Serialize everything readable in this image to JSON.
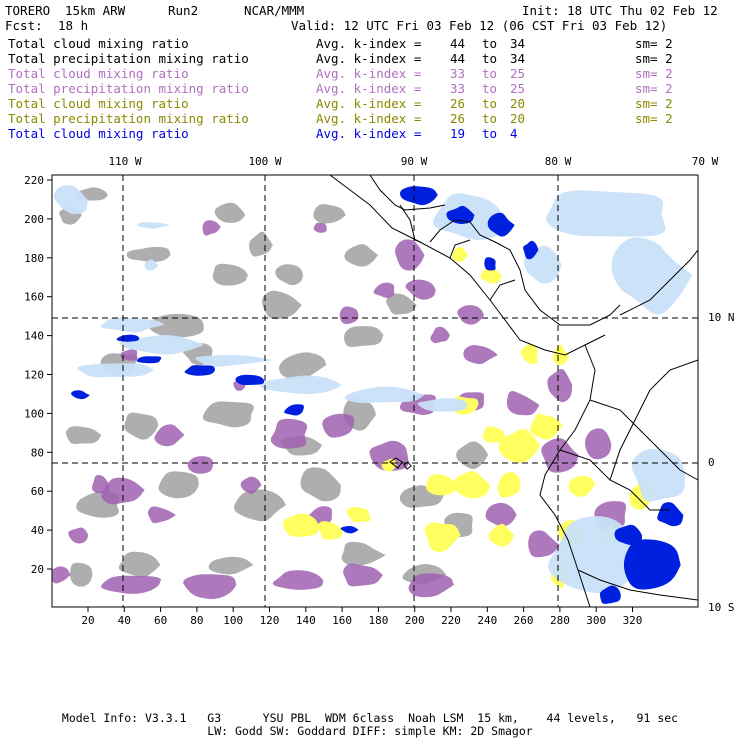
{
  "header": {
    "model": "TORERO",
    "resolution": "15km ARW",
    "run": "Run2",
    "org": "NCAR/MMM",
    "init": "Init: 18 UTC Thu 02 Feb 12",
    "fcst_label": "Fcst:",
    "fcst_value": "18 h",
    "valid": "Valid: 12 UTC Fri 03 Feb 12 (06 CST Fri 03 Feb 12)"
  },
  "legend": [
    {
      "field": "Total cloud mixing ratio",
      "kindex": "Avg. k-index =",
      "from": "44",
      "to_word": "to",
      "to": "34",
      "sm": "sm= 2",
      "color": "#000000"
    },
    {
      "field": "Total precipitation mixing ratio",
      "kindex": "Avg. k-index =",
      "from": "44",
      "to_word": "to",
      "to": "34",
      "sm": "sm= 2",
      "color": "#000000"
    },
    {
      "field": "Total cloud mixing ratio",
      "kindex": "Avg. k-index =",
      "from": "33",
      "to_word": "to",
      "to": "25",
      "sm": "sm= 2",
      "color": "#b070c0"
    },
    {
      "field": "Total precipitation mixing ratio",
      "kindex": "Avg. k-index =",
      "from": "33",
      "to_word": "to",
      "to": "25",
      "sm": "sm= 2",
      "color": "#b070c0"
    },
    {
      "field": "Total cloud mixing ratio",
      "kindex": "Avg. k-index =",
      "from": "26",
      "to_word": "to",
      "to": "20",
      "sm": "sm= 2",
      "color": "#8a8a00"
    },
    {
      "field": "Total precipitation mixing ratio",
      "kindex": "Avg. k-index =",
      "from": "26",
      "to_word": "to",
      "to": "20",
      "sm": "sm= 2",
      "color": "#8a8a00"
    },
    {
      "field": "Total cloud mixing ratio",
      "kindex": "Avg. k-index =",
      "from": "19",
      "to_word": "to",
      "to": "4",
      "sm": "",
      "color": "#0000e0"
    }
  ],
  "map": {
    "lon_labels": [
      "110 W",
      "100 W",
      "90 W",
      "80 W",
      "70 W"
    ],
    "lat_labels": [
      "10 N",
      "0",
      "10 S"
    ],
    "x_ticks": [
      "20",
      "40",
      "60",
      "80",
      "100",
      "120",
      "140",
      "160",
      "180",
      "200",
      "220",
      "240",
      "260",
      "280",
      "300",
      "320"
    ],
    "y_ticks": [
      "220",
      "200",
      "180",
      "160",
      "140",
      "120",
      "100",
      "80",
      "60",
      "40",
      "20"
    ],
    "colors": {
      "gray": "#a0a0a0",
      "purple": "#a060b0",
      "yellow": "#ffff60",
      "light_blue": "#c8e0f8",
      "blue": "#0020e0",
      "coast": "#000000"
    }
  },
  "footer": {
    "line1": "Model Info: V3.3.1   G3      YSU PBL  WDM 6class  Noah LSM  15 km,    44 levels,   91 sec",
    "line2": "LW: Godd SW: Goddard DIFF: simple KM: 2D Smagor"
  }
}
